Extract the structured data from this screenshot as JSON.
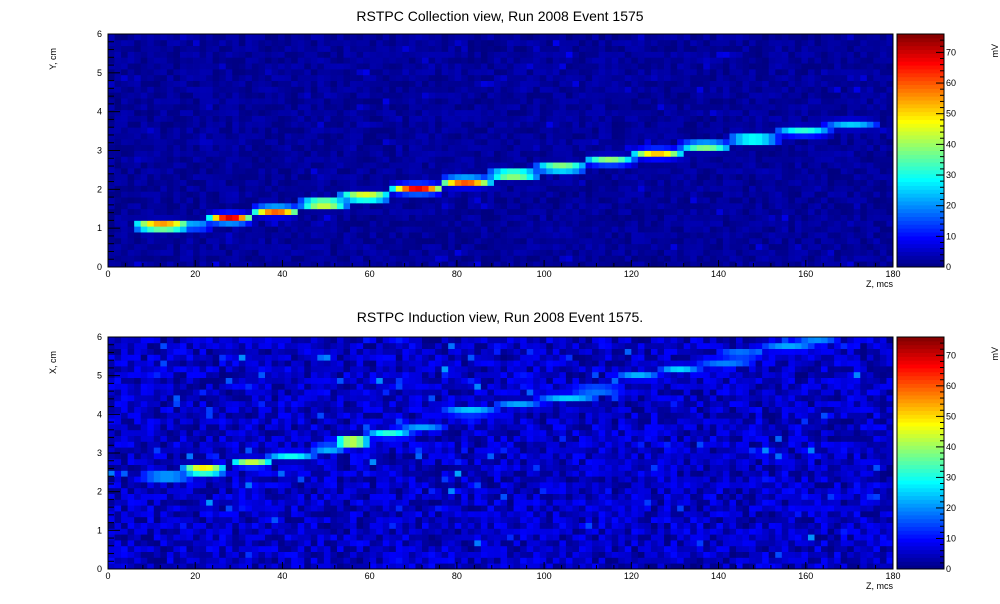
{
  "chart_data": [
    {
      "type": "heatmap",
      "title": "RSTPC Collection view, Run 2008 Event 1575",
      "xlabel": "Z, mcs",
      "ylabel": "Y, cm",
      "zlabel": "mV",
      "xlim": [
        0,
        180
      ],
      "ylim": [
        0,
        6
      ],
      "zlim": [
        0,
        76
      ],
      "x_ticks": [
        0,
        20,
        40,
        60,
        80,
        100,
        120,
        140,
        160,
        180
      ],
      "y_ticks": [
        0,
        1,
        2,
        3,
        4,
        5,
        6
      ],
      "z_ticks": [
        0,
        10,
        20,
        30,
        40,
        50,
        60,
        70
      ],
      "background_level": 2,
      "track": [
        {
          "z": [
            7,
            18
          ],
          "y": 1.07,
          "peak": 68
        },
        {
          "z": [
            18,
            23
          ],
          "y": 1.07,
          "peak": 26
        },
        {
          "z": [
            24,
            32
          ],
          "y": 1.26,
          "peak": 70
        },
        {
          "z": [
            34,
            43
          ],
          "y": 1.45,
          "peak": 62
        },
        {
          "z": [
            45,
            54
          ],
          "y": 1.64,
          "peak": 58
        },
        {
          "z": [
            54,
            64
          ],
          "y": 1.82,
          "peak": 56
        },
        {
          "z": [
            66,
            76
          ],
          "y": 2.02,
          "peak": 68
        },
        {
          "z": [
            77,
            87
          ],
          "y": 2.2,
          "peak": 63
        },
        {
          "z": [
            88,
            98
          ],
          "y": 2.39,
          "peak": 52
        },
        {
          "z": [
            99,
            109
          ],
          "y": 2.57,
          "peak": 47
        },
        {
          "z": [
            110,
            120
          ],
          "y": 2.75,
          "peak": 41
        },
        {
          "z": [
            121,
            131
          ],
          "y": 2.93,
          "peak": 52
        },
        {
          "z": [
            132,
            142
          ],
          "y": 3.12,
          "peak": 44
        },
        {
          "z": [
            143,
            153
          ],
          "y": 3.3,
          "peak": 42
        },
        {
          "z": [
            154,
            165
          ],
          "y": 3.5,
          "peak": 33
        },
        {
          "z": [
            165,
            176
          ],
          "y": 3.68,
          "peak": 25
        }
      ]
    },
    {
      "type": "heatmap",
      "title": "RSTPC Induction view, Run 2008 Event 1575.",
      "xlabel": "Z, mcs",
      "ylabel": "X, cm",
      "zlabel": "mV",
      "xlim": [
        0,
        180
      ],
      "ylim": [
        0,
        6
      ],
      "zlim": [
        0,
        76
      ],
      "x_ticks": [
        0,
        20,
        40,
        60,
        80,
        100,
        120,
        140,
        160,
        180
      ],
      "y_ticks": [
        0,
        1,
        2,
        3,
        4,
        5,
        6
      ],
      "z_ticks": [
        0,
        10,
        20,
        30,
        40,
        50,
        60,
        70
      ],
      "background_level": 5,
      "track": [
        {
          "z": [
            8,
            19
          ],
          "y": 2.4,
          "peak": 30
        },
        {
          "z": [
            18,
            26
          ],
          "y": 2.57,
          "peak": 60
        },
        {
          "z": [
            29,
            37
          ],
          "y": 2.76,
          "peak": 44
        },
        {
          "z": [
            37,
            47
          ],
          "y": 2.94,
          "peak": 30
        },
        {
          "z": [
            47,
            54
          ],
          "y": 3.13,
          "peak": 28
        },
        {
          "z": [
            53,
            59
          ],
          "y": 3.3,
          "peak": 62
        },
        {
          "z": [
            60,
            69
          ],
          "y": 3.5,
          "peak": 33
        },
        {
          "z": [
            67,
            77
          ],
          "y": 3.68,
          "peak": 22
        },
        {
          "z": [
            77,
            89
          ],
          "y": 4.08,
          "peak": 28
        },
        {
          "z": [
            89,
            99
          ],
          "y": 4.27,
          "peak": 22
        },
        {
          "z": [
            99,
            112
          ],
          "y": 4.45,
          "peak": 26
        },
        {
          "z": [
            106,
            118
          ],
          "y": 4.64,
          "peak": 24
        },
        {
          "z": [
            117,
            126
          ],
          "y": 5.0,
          "peak": 24
        },
        {
          "z": [
            127,
            135
          ],
          "y": 5.19,
          "peak": 26
        },
        {
          "z": [
            135,
            148
          ],
          "y": 5.37,
          "peak": 22
        },
        {
          "z": [
            140,
            150
          ],
          "y": 5.56,
          "peak": 24
        },
        {
          "z": [
            150,
            162
          ],
          "y": 5.74,
          "peak": 24
        },
        {
          "z": [
            158,
            167
          ],
          "y": 5.93,
          "peak": 20
        }
      ]
    }
  ]
}
